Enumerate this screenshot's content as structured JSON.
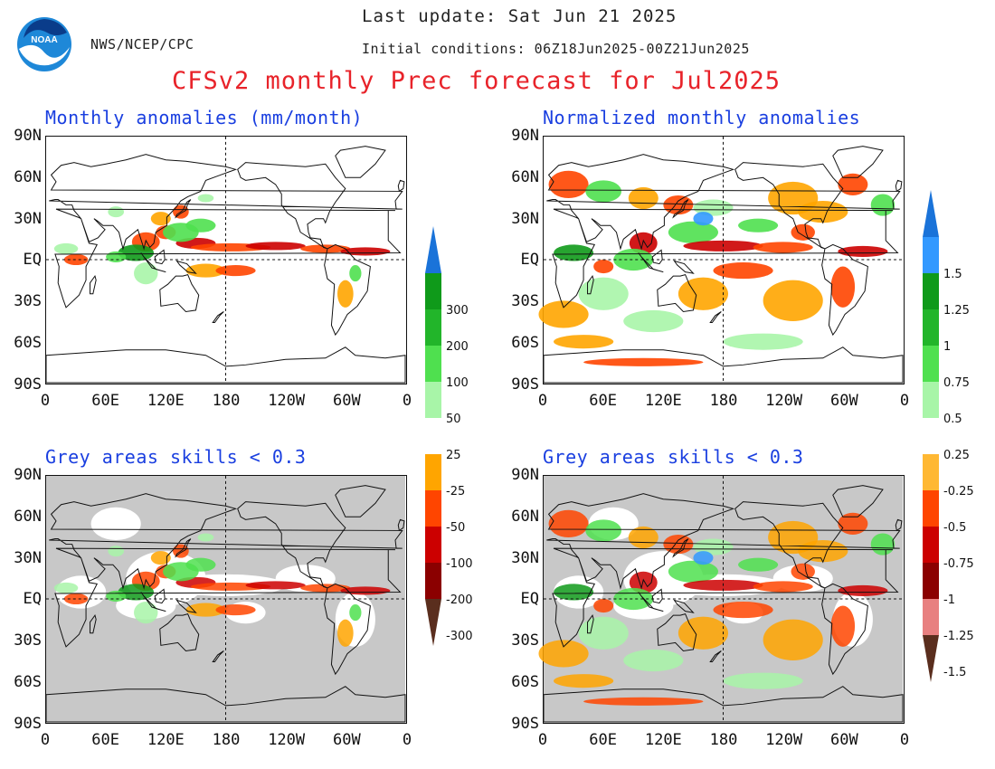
{
  "header": {
    "agency": "NWS/NCEP/CPC",
    "last_update": "Last update: Sat Jun 21 2025",
    "initial_conditions": "Initial conditions: 06Z18Jun2025-00Z21Jun2025",
    "title": "CFSv2 monthly Prec forecast for Jul2025",
    "logo_icon": "noaa-logo-icon",
    "logo_text": "NOAA"
  },
  "axes": {
    "y_ticks": [
      "90N",
      "60N",
      "30N",
      "EQ",
      "30S",
      "60S",
      "90S"
    ],
    "x_ticks": [
      "0",
      "60E",
      "120E",
      "180",
      "120W",
      "60W",
      "0"
    ]
  },
  "panels": [
    {
      "title": "Monthly anomalies (mm/month)",
      "grey_mask": false,
      "normalized": false
    },
    {
      "title": "Normalized monthly anomalies",
      "grey_mask": false,
      "normalized": true
    },
    {
      "title": "Grey areas skills < 0.3",
      "grey_mask": true,
      "normalized": false
    },
    {
      "title": "Grey areas skills < 0.3",
      "grey_mask": true,
      "normalized": true
    }
  ],
  "colorbars": {
    "anomaly": {
      "labels": [
        "300",
        "200",
        "100",
        "50",
        "25",
        "-25",
        "-50",
        "-100",
        "-200",
        "-300"
      ],
      "colors": [
        "#1a73d9",
        "#0f9a1a",
        "#22b52a",
        "#4fe04f",
        "#a8f5a8",
        "#ffffff",
        "#ffa500",
        "#ff4500",
        "#cc0000",
        "#8b0000",
        "#5a2e1e"
      ]
    },
    "normalized": {
      "labels": [
        "1.5",
        "1.25",
        "1",
        "0.75",
        "0.5",
        "0.25",
        "-0.25",
        "-0.5",
        "-0.75",
        "-1",
        "-1.25",
        "-1.5"
      ],
      "colors": [
        "#1a73d9",
        "#3399ff",
        "#0f9a1a",
        "#22b52a",
        "#4fe04f",
        "#a8f5a8",
        "#ffffff",
        "#ffb833",
        "#ff4500",
        "#cc0000",
        "#8b0000",
        "#e88080",
        "#5a2e1e"
      ]
    }
  },
  "colors": {
    "mask_grey": "#c8c8c8",
    "wet_strong": "#0f9a1a",
    "wet": "#4fe04f",
    "wet_light": "#a8f5a8",
    "dry_light": "#ffa500",
    "dry": "#ff4500",
    "dry_strong": "#cc0000",
    "blue": "#3399ff"
  }
}
